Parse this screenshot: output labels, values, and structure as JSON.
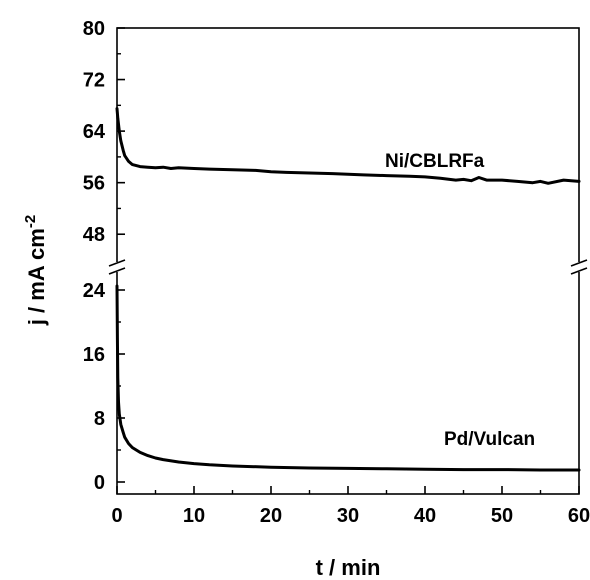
{
  "chart_data": {
    "type": "line",
    "xlabel": "t / min",
    "ylabel_main": "j / mA cm",
    "ylabel_sup": "-2",
    "xlim": [
      0,
      60
    ],
    "x_ticks": [
      0,
      10,
      20,
      30,
      40,
      50,
      60
    ],
    "axis_break": true,
    "upper_panel": {
      "ylim": [
        44,
        80
      ],
      "y_ticks": [
        48,
        56,
        64,
        72,
        80
      ]
    },
    "lower_panel": {
      "ylim": [
        -1.5,
        26
      ],
      "y_ticks": [
        0,
        8,
        16,
        24
      ]
    },
    "series": [
      {
        "name": "Ni/CBLRFa",
        "panel": "upper",
        "x": [
          0,
          0.1,
          0.3,
          0.5,
          0.8,
          1,
          1.5,
          2,
          3,
          4,
          5,
          6,
          7,
          8,
          10,
          12,
          15,
          18,
          20,
          22,
          25,
          28,
          30,
          32,
          35,
          38,
          40,
          42,
          44,
          45,
          46,
          47,
          48,
          50,
          52,
          54,
          55,
          56,
          58,
          60
        ],
        "y": [
          67.5,
          66,
          64,
          62.5,
          61,
          60.2,
          59.3,
          58.8,
          58.5,
          58.4,
          58.3,
          58.4,
          58.2,
          58.3,
          58.2,
          58.1,
          58.0,
          57.9,
          57.7,
          57.6,
          57.5,
          57.4,
          57.3,
          57.2,
          57.1,
          57.0,
          56.9,
          56.7,
          56.4,
          56.5,
          56.3,
          56.8,
          56.4,
          56.4,
          56.2,
          56.0,
          56.2,
          55.9,
          56.4,
          56.2
        ]
      },
      {
        "name": "Pd/Vulcan",
        "panel": "lower",
        "x": [
          0,
          0.05,
          0.1,
          0.2,
          0.3,
          0.5,
          0.8,
          1,
          1.5,
          2,
          3,
          4,
          5,
          6,
          8,
          10,
          12,
          15,
          20,
          25,
          30,
          35,
          40,
          45,
          50,
          55,
          60
        ],
        "y": [
          24.5,
          18,
          13,
          10,
          8.5,
          7.2,
          6.2,
          5.6,
          4.8,
          4.3,
          3.7,
          3.3,
          3.0,
          2.8,
          2.5,
          2.3,
          2.15,
          2.0,
          1.85,
          1.75,
          1.7,
          1.65,
          1.6,
          1.55,
          1.55,
          1.5,
          1.5
        ]
      }
    ]
  }
}
